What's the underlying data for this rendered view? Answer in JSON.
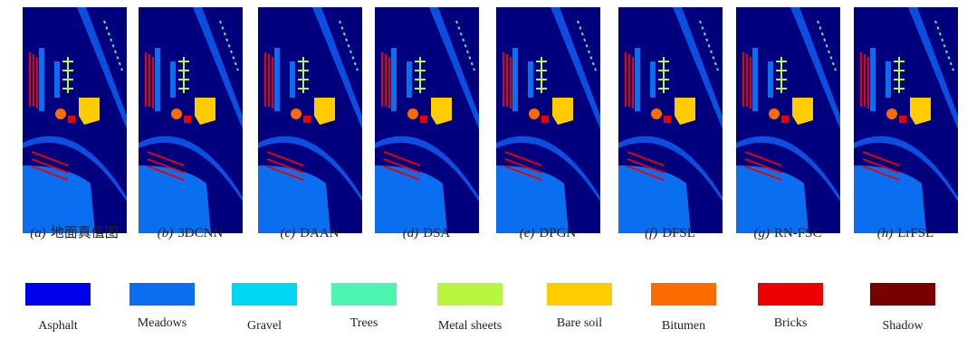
{
  "panels": [
    {
      "marker": "(a)",
      "name": "地面真值图"
    },
    {
      "marker": "(b)",
      "name": "3DCNN"
    },
    {
      "marker": "(c)",
      "name": "DAAN"
    },
    {
      "marker": "(d)",
      "name": "DSA"
    },
    {
      "marker": "(e)",
      "name": "DPGN"
    },
    {
      "marker": "(f)",
      "name": "DFSL"
    },
    {
      "marker": "(g)",
      "name": "RN-FSC"
    },
    {
      "marker": "(h)",
      "name": "LrFSL"
    }
  ],
  "legend": [
    {
      "name": "Asphalt",
      "color": "#0000ee"
    },
    {
      "name": "Meadows",
      "color": "#0a6ef0"
    },
    {
      "name": "Gravel",
      "color": "#00d8f2"
    },
    {
      "name": "Trees",
      "color": "#4cf6b0"
    },
    {
      "name": "Metal sheets",
      "color": "#b8f640"
    },
    {
      "name": "Bare soil",
      "color": "#ffcc00"
    },
    {
      "name": "Bitumen",
      "color": "#ff6a00"
    },
    {
      "name": "Bricks",
      "color": "#ee0000"
    },
    {
      "name": "Shadow",
      "color": "#7a0000"
    }
  ]
}
